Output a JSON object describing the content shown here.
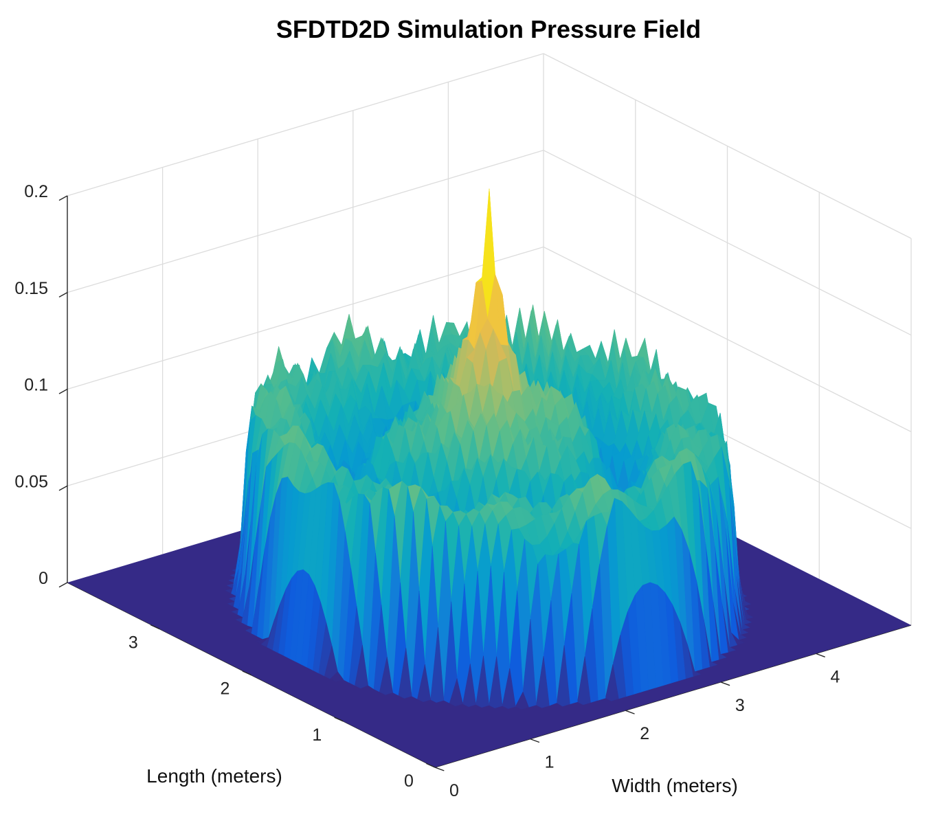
{
  "chart_data": {
    "type": "surface",
    "title": "SFDTD2D Simulation Pressure Field",
    "xlabel": "Width (meters)",
    "ylabel": "Length (meters)",
    "zlabel": "",
    "xlim": [
      0,
      5
    ],
    "ylim": [
      0,
      4
    ],
    "zlim": [
      0,
      0.2
    ],
    "xticks": [
      "0",
      "1",
      "2",
      "3",
      "4"
    ],
    "yticks": [
      "0",
      "1",
      "2",
      "3"
    ],
    "zticks": [
      "0",
      "0.05",
      "0.1",
      "0.15",
      "0.2"
    ],
    "grid": true,
    "colormap": "parula",
    "surface_color_low": "#352a87",
    "surface_color_high": "#f9fb0e",
    "field": {
      "background_value": 0,
      "annulus_center": [
        2.5,
        2.0
      ],
      "annulus_outer_radius": 2.0,
      "rim_height": 0.09,
      "center_peak_value": 0.19,
      "center_peak_location": [
        2.5,
        2.0
      ]
    }
  }
}
